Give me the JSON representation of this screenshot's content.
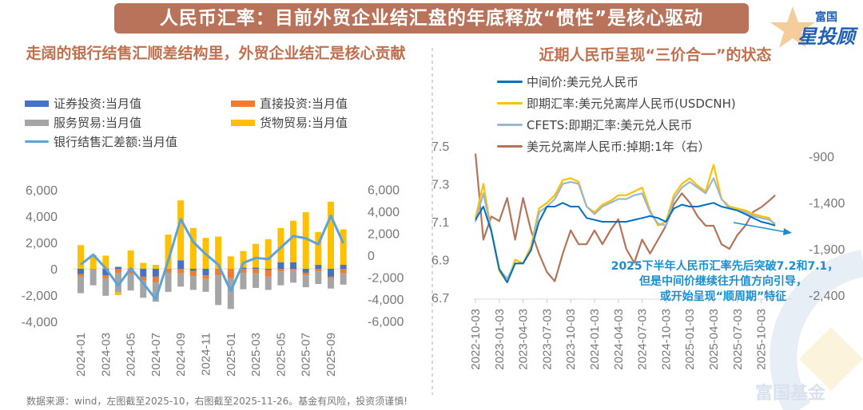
{
  "header": {
    "title": "人民币汇率：目前外贸企业结汇盘的年底释放“惯性”是核心驱动",
    "logo_text_top": "富国",
    "logo_text_main": "星投顾"
  },
  "watermark": "富国基金",
  "footnote": "数据来源：wind，左图截至2025-10，右图截至2025-11-26。基金有风险，投资须谨慎!",
  "colors": {
    "securities": "#4472c4",
    "direct": "#ed7d31",
    "services": "#a5a5a5",
    "goods": "#ffc000",
    "net": "#5ba3d9",
    "central": "#0070c0",
    "cnh": "#ffc000",
    "cfets": "#9db6cc",
    "swap": "#b5735a",
    "banner": "#b9735a",
    "subtitle": "#c0704f",
    "annotation": "#1a8fd0"
  },
  "chart_data": [
    {
      "type": "bar",
      "title": "走阔的银行结售汇顺差结构里，外贸企业结汇是核心贡献",
      "stacked": true,
      "categories": [
        "2024-01",
        "2024-02",
        "2024-03",
        "2024-04",
        "2024-05",
        "2024-06",
        "2024-07",
        "2024-08",
        "2024-09",
        "2024-10",
        "2024-11",
        "2024-12",
        "2025-01",
        "2025-02",
        "2025-03",
        "2025-04",
        "2025-05",
        "2025-06",
        "2025-07",
        "2025-08",
        "2025-09",
        "2025-10"
      ],
      "x_tick_labels": [
        "2024-01",
        "2024-03",
        "2024-05",
        "2024-07",
        "2024-09",
        "2024-11",
        "2025-01",
        "2025-03",
        "2025-05",
        "2025-07",
        "2025-09"
      ],
      "y_left": {
        "lim": [
          -4000,
          6000
        ],
        "ticks": [
          "6,000",
          "4,000",
          "2,000",
          "0",
          "-2,000",
          "-4,000"
        ],
        "tick_values": [
          6000,
          4000,
          2000,
          0,
          -2000,
          -4000
        ]
      },
      "y_right": {
        "lim": [
          -6000,
          6000
        ],
        "ticks": [
          "6,000",
          "4,000",
          "2,000",
          "0",
          "-2,000",
          "-4,000",
          "-6,000"
        ],
        "tick_values": [
          6000,
          4000,
          2000,
          0,
          -2000,
          -4000,
          -6000
        ]
      },
      "legend_position": "top",
      "series": [
        {
          "name": "证券投资:当月值",
          "key": "securities",
          "kind": "bar",
          "axis": "left",
          "values": [
            -400,
            0,
            -500,
            150,
            0,
            -600,
            -600,
            0,
            650,
            -150,
            -500,
            0,
            0,
            100,
            100,
            -100,
            500,
            500,
            -300,
            300,
            -600,
            300
          ]
        },
        {
          "name": "直接投资:当月值",
          "key": "direct",
          "kind": "bar",
          "axis": "left",
          "values": [
            -200,
            -50,
            -200,
            -300,
            -400,
            -300,
            -400,
            -300,
            -350,
            -400,
            -250,
            -500,
            -700,
            -300,
            -350,
            -500,
            -200,
            -100,
            -200,
            -200,
            -100,
            -350
          ]
        },
        {
          "name": "服务贸易:当月值",
          "key": "services",
          "kind": "bar",
          "axis": "left",
          "values": [
            -1250,
            -1200,
            -1350,
            -1500,
            -1250,
            -1300,
            -1500,
            -1450,
            -1000,
            -1050,
            -1000,
            -2250,
            -2350,
            -1250,
            -1100,
            -1000,
            -1050,
            -950,
            -900,
            -950,
            -800,
            -850
          ]
        },
        {
          "name": "货物贸易:当月值",
          "key": "goods",
          "kind": "bar",
          "axis": "left",
          "values": [
            1800,
            1050,
            1000,
            -200,
            1400,
            450,
            300,
            2600,
            4550,
            3100,
            2350,
            2450,
            950,
            1250,
            1800,
            2250,
            2600,
            3150,
            4300,
            2500,
            5100,
            2700
          ]
        },
        {
          "name": "银行结售汇差额:当月值",
          "key": "net",
          "kind": "line",
          "axis": "right",
          "values": [
            -850,
            50,
            -1200,
            -2750,
            -1200,
            -2550,
            -4000,
            -480,
            3300,
            1200,
            100,
            -850,
            -3250,
            -700,
            -250,
            -350,
            700,
            1750,
            1550,
            1000,
            3600,
            1100
          ]
        }
      ]
    },
    {
      "type": "line",
      "title": "近期人民币呈现“三价合一”的状态",
      "x": [
        "2022-10",
        "2022-11",
        "2022-12",
        "2023-01",
        "2023-02",
        "2023-03",
        "2023-04",
        "2023-05",
        "2023-06",
        "2023-07",
        "2023-08",
        "2023-09",
        "2023-10",
        "2023-11",
        "2023-12",
        "2024-01",
        "2024-02",
        "2024-03",
        "2024-04",
        "2024-05",
        "2024-06",
        "2024-07",
        "2024-08",
        "2024-09",
        "2024-10",
        "2024-11",
        "2024-12",
        "2025-01",
        "2025-02",
        "2025-03",
        "2025-04",
        "2025-05",
        "2025-06",
        "2025-07",
        "2025-08",
        "2025-09",
        "2025-10",
        "2025-11",
        "2025-11-26"
      ],
      "x_tick_labels": [
        "2022-10-03",
        "2023-01-03",
        "2023-04-03",
        "2023-07-03",
        "2023-10-03",
        "2024-01-03",
        "2024-04-03",
        "2024-07-03",
        "2024-10-03",
        "2025-01-03",
        "2025-04-03",
        "2025-07-03",
        "2025-10-03"
      ],
      "y_left": {
        "lim": [
          6.7,
          7.5
        ],
        "ticks": [
          "7.5",
          "7.3",
          "7.1",
          "6.9",
          "6.7"
        ],
        "tick_values": [
          7.5,
          7.3,
          7.1,
          6.9,
          6.7
        ]
      },
      "y_right": {
        "lim": [
          -2400,
          -750
        ],
        "ticks": [
          "-900",
          "-1,400",
          "-1,900",
          "-2,400"
        ],
        "tick_values": [
          -900,
          -1400,
          -1900,
          -2400
        ]
      },
      "legend_position": "top",
      "series": [
        {
          "name": "中间价:美元兑人民币",
          "key": "central",
          "axis": "left",
          "values": [
            7.11,
            7.18,
            7.05,
            6.85,
            6.78,
            6.88,
            6.88,
            6.95,
            7.1,
            7.18,
            7.18,
            7.2,
            7.18,
            7.18,
            7.12,
            7.11,
            7.1,
            7.1,
            7.1,
            7.1,
            7.11,
            7.12,
            7.13,
            7.12,
            7.1,
            7.17,
            7.19,
            7.18,
            7.18,
            7.19,
            7.2,
            7.18,
            7.17,
            7.16,
            7.14,
            7.12,
            7.1,
            7.09,
            7.08
          ]
        },
        {
          "name": "即期汇率:美元兑离岸人民币(USDCNH)",
          "key": "cnh",
          "axis": "left",
          "values": [
            7.12,
            7.3,
            7.05,
            6.84,
            6.78,
            6.9,
            6.88,
            6.97,
            7.17,
            7.2,
            7.24,
            7.32,
            7.33,
            7.31,
            7.18,
            7.15,
            7.19,
            7.21,
            7.24,
            7.24,
            7.26,
            7.28,
            7.16,
            7.08,
            7.1,
            7.24,
            7.3,
            7.33,
            7.29,
            7.26,
            7.4,
            7.22,
            7.18,
            7.17,
            7.16,
            7.14,
            7.13,
            7.12,
            7.08
          ]
        },
        {
          "name": "CFETS:即期汇率:美元兑人民币",
          "key": "cfets",
          "axis": "left",
          "values": [
            7.1,
            7.25,
            7.05,
            6.85,
            6.8,
            6.88,
            6.88,
            6.95,
            7.15,
            7.18,
            7.22,
            7.3,
            7.31,
            7.3,
            7.18,
            7.14,
            7.18,
            7.2,
            7.22,
            7.22,
            7.24,
            7.25,
            7.15,
            7.09,
            7.08,
            7.22,
            7.28,
            7.31,
            7.28,
            7.25,
            7.33,
            7.22,
            7.17,
            7.16,
            7.15,
            7.13,
            7.12,
            7.11,
            7.09
          ]
        },
        {
          "name": "美元兑离岸人民币:掉期:1年（右）",
          "key": "swap",
          "axis": "right",
          "values": [
            -870,
            -1800,
            -1550,
            -1600,
            -1350,
            -1800,
            -1350,
            -1700,
            -1950,
            -2150,
            -2250,
            -1950,
            -1700,
            -1850,
            -1850,
            -1700,
            -1850,
            -1700,
            -1580,
            -1900,
            -2050,
            -1800,
            -1950,
            -1800,
            -1650,
            -1420,
            -1300,
            -1400,
            -1550,
            -1650,
            -1650,
            -1850,
            -1900,
            -1750,
            -1650,
            -1500,
            -1450,
            -1380,
            -1320
          ]
        }
      ],
      "annotation": [
        "2025下半年人民币汇率先后突破7.2和7.1，",
        "但是中间价继续往升值方向引导，",
        "或开始呈现“顺周期”特征"
      ]
    }
  ]
}
